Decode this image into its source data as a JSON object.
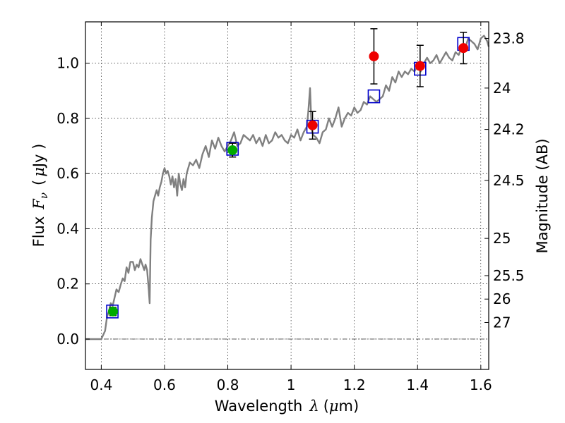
{
  "chart_data": {
    "type": "line",
    "xlabel": {
      "text": "Wavelength",
      "symbol": "λ",
      "unit_open": "(",
      "unit_mu": "μ",
      "unit_rest": "m)"
    },
    "ylabel": {
      "text": "Flux",
      "symbol": "F",
      "subscript": "ν",
      "unit_open": "(",
      "unit_mu": "μ",
      "unit_rest": "Jy )"
    },
    "y2label": "Magnitude (AB)",
    "xlim": [
      0.35,
      1.625
    ],
    "ylim": [
      -0.11,
      1.15
    ],
    "grid": true,
    "xticks": [
      {
        "value": 0.4,
        "label": "0.4"
      },
      {
        "value": 0.6,
        "label": "0.6"
      },
      {
        "value": 0.8,
        "label": "0.8"
      },
      {
        "value": 1.0,
        "label": "1"
      },
      {
        "value": 1.2,
        "label": "1.2"
      },
      {
        "value": 1.4,
        "label": "1.4"
      },
      {
        "value": 1.6,
        "label": "1.6"
      }
    ],
    "yticks": [
      {
        "value": 0.0,
        "label": "0.0"
      },
      {
        "value": 0.2,
        "label": "0.2"
      },
      {
        "value": 0.4,
        "label": "0.4"
      },
      {
        "value": 0.6,
        "label": "0.6"
      },
      {
        "value": 0.8,
        "label": "0.8"
      },
      {
        "value": 1.0,
        "label": "1.0"
      }
    ],
    "y2ticks": [
      {
        "label": "23.8",
        "flux_pos": 1.09
      },
      {
        "label": "24",
        "flux_pos": 0.91
      },
      {
        "label": "24.2",
        "flux_pos": 0.76
      },
      {
        "label": "24.5",
        "flux_pos": 0.575
      },
      {
        "label": "25",
        "flux_pos": 0.365
      },
      {
        "label": "25.5",
        "flux_pos": 0.23
      },
      {
        "label": "26",
        "flux_pos": 0.145
      },
      {
        "label": "27",
        "flux_pos": 0.06
      }
    ],
    "zero_line": 0.0,
    "colors": {
      "spectrum": "#808080",
      "model": "#0000cc",
      "green": "#00aa00",
      "red": "#ee0000",
      "errorbar": "#000000"
    },
    "series": [
      {
        "kind": "spectrum",
        "x": [
          0.35,
          0.4,
          0.412,
          0.418,
          0.424,
          0.43,
          0.436,
          0.442,
          0.448,
          0.455,
          0.462,
          0.468,
          0.474,
          0.48,
          0.486,
          0.492,
          0.5,
          0.506,
          0.512,
          0.518,
          0.524,
          0.53,
          0.536,
          0.54,
          0.545,
          0.55,
          0.553,
          0.556,
          0.56,
          0.565,
          0.57,
          0.575,
          0.58,
          0.585,
          0.59,
          0.595,
          0.6,
          0.605,
          0.61,
          0.615,
          0.62,
          0.625,
          0.63,
          0.635,
          0.64,
          0.645,
          0.65,
          0.655,
          0.66,
          0.665,
          0.67,
          0.675,
          0.68,
          0.69,
          0.7,
          0.71,
          0.72,
          0.73,
          0.74,
          0.75,
          0.76,
          0.77,
          0.78,
          0.79,
          0.8,
          0.81,
          0.82,
          0.83,
          0.84,
          0.85,
          0.86,
          0.87,
          0.88,
          0.89,
          0.9,
          0.91,
          0.92,
          0.93,
          0.94,
          0.95,
          0.96,
          0.97,
          0.98,
          0.99,
          1.0,
          1.01,
          1.02,
          1.03,
          1.04,
          1.05,
          1.055,
          1.06,
          1.065,
          1.07,
          1.08,
          1.09,
          1.1,
          1.11,
          1.12,
          1.13,
          1.14,
          1.15,
          1.16,
          1.17,
          1.18,
          1.19,
          1.2,
          1.21,
          1.22,
          1.23,
          1.24,
          1.25,
          1.26,
          1.27,
          1.28,
          1.29,
          1.3,
          1.31,
          1.32,
          1.33,
          1.34,
          1.35,
          1.36,
          1.37,
          1.38,
          1.39,
          1.4,
          1.41,
          1.42,
          1.43,
          1.44,
          1.45,
          1.46,
          1.47,
          1.48,
          1.49,
          1.5,
          1.51,
          1.52,
          1.53,
          1.54,
          1.55,
          1.56,
          1.57,
          1.58,
          1.59,
          1.6,
          1.61,
          1.62,
          1.625
        ],
        "y": [
          0.0,
          0.0,
          0.03,
          0.08,
          0.1,
          0.13,
          0.12,
          0.15,
          0.18,
          0.17,
          0.2,
          0.22,
          0.21,
          0.26,
          0.24,
          0.28,
          0.28,
          0.25,
          0.27,
          0.26,
          0.29,
          0.27,
          0.25,
          0.27,
          0.25,
          0.18,
          0.13,
          0.36,
          0.44,
          0.5,
          0.52,
          0.54,
          0.52,
          0.55,
          0.57,
          0.6,
          0.62,
          0.6,
          0.61,
          0.59,
          0.56,
          0.59,
          0.55,
          0.58,
          0.52,
          0.6,
          0.56,
          0.54,
          0.58,
          0.55,
          0.6,
          0.62,
          0.64,
          0.63,
          0.65,
          0.62,
          0.67,
          0.7,
          0.66,
          0.72,
          0.69,
          0.73,
          0.7,
          0.68,
          0.7,
          0.72,
          0.75,
          0.7,
          0.71,
          0.74,
          0.73,
          0.72,
          0.74,
          0.71,
          0.73,
          0.7,
          0.74,
          0.71,
          0.72,
          0.75,
          0.73,
          0.74,
          0.72,
          0.71,
          0.74,
          0.73,
          0.76,
          0.72,
          0.75,
          0.77,
          0.83,
          0.91,
          0.76,
          0.74,
          0.73,
          0.71,
          0.75,
          0.76,
          0.8,
          0.77,
          0.8,
          0.84,
          0.77,
          0.8,
          0.82,
          0.81,
          0.84,
          0.82,
          0.83,
          0.86,
          0.85,
          0.88,
          0.87,
          0.86,
          0.87,
          0.88,
          0.92,
          0.9,
          0.95,
          0.93,
          0.97,
          0.95,
          0.97,
          0.96,
          0.98,
          0.97,
          0.99,
          0.97,
          1.0,
          1.02,
          1.0,
          1.01,
          1.03,
          1.0,
          1.02,
          1.04,
          1.02,
          1.01,
          1.04,
          1.03,
          1.06,
          1.05,
          1.09,
          1.08,
          1.07,
          1.05,
          1.09,
          1.1,
          1.08,
          1.06
        ]
      },
      {
        "kind": "model-squares",
        "x": [
          0.435,
          0.815,
          1.068,
          1.262,
          1.408,
          1.545
        ],
        "y": [
          0.1,
          0.69,
          0.77,
          0.88,
          0.98,
          1.07
        ]
      },
      {
        "kind": "green-points",
        "x": [
          0.437,
          0.815
        ],
        "y": [
          0.1,
          0.685
        ],
        "err": [
          0.015,
          0.025
        ]
      },
      {
        "kind": "red-points",
        "x": [
          1.068,
          1.262,
          1.408,
          1.545
        ],
        "y": [
          0.775,
          1.025,
          0.99,
          1.055
        ],
        "err": [
          0.05,
          0.1,
          0.075,
          0.057
        ]
      }
    ]
  }
}
